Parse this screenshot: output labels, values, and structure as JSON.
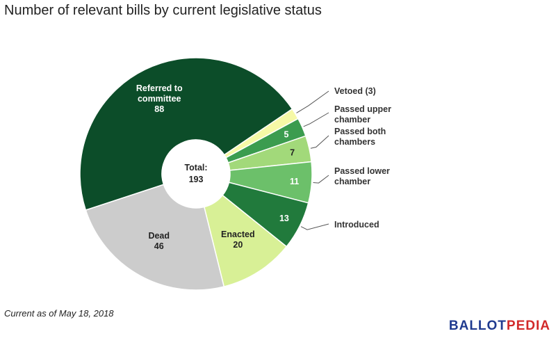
{
  "title": "Number of relevant bills by current legislative status",
  "footnote": "Current as of May 18, 2018",
  "brand": {
    "part1": "BALLOT",
    "part2": "PEDIA",
    "color_main": "#1f3a8f",
    "color_accent": "#d22a2a"
  },
  "chart_data": {
    "type": "pie",
    "variant": "donut",
    "title": "Number of relevant bills by current legislative status",
    "center_label": {
      "line1": "Total:",
      "line2": "193"
    },
    "slices": [
      {
        "key": "vetoed",
        "label": "Vetoed (3)",
        "value": 3,
        "color": "#f6f9a6",
        "label_position": "outside"
      },
      {
        "key": "passed_upper",
        "label": "Passed upper chamber",
        "value": 5,
        "color": "#3b9c4f",
        "label_position": "outside"
      },
      {
        "key": "passed_both",
        "label": "Passed both chambers",
        "value": 7,
        "color": "#a2d97a",
        "label_position": "outside"
      },
      {
        "key": "passed_lower",
        "label": "Passed lower chamber",
        "value": 11,
        "color": "#6cc06a",
        "label_position": "outside"
      },
      {
        "key": "introduced",
        "label": "Introduced",
        "value": 13,
        "color": "#217a3c",
        "label_position": "outside"
      },
      {
        "key": "enacted",
        "label": "Enacted",
        "value": 20,
        "color": "#d8f096",
        "label_position": "inside"
      },
      {
        "key": "dead",
        "label": "Dead",
        "value": 46,
        "color": "#cccccc",
        "label_position": "inside"
      },
      {
        "key": "referred",
        "label": "Referred to committee",
        "value": 88,
        "color": "#0c4d29",
        "label_position": "inside"
      }
    ]
  }
}
